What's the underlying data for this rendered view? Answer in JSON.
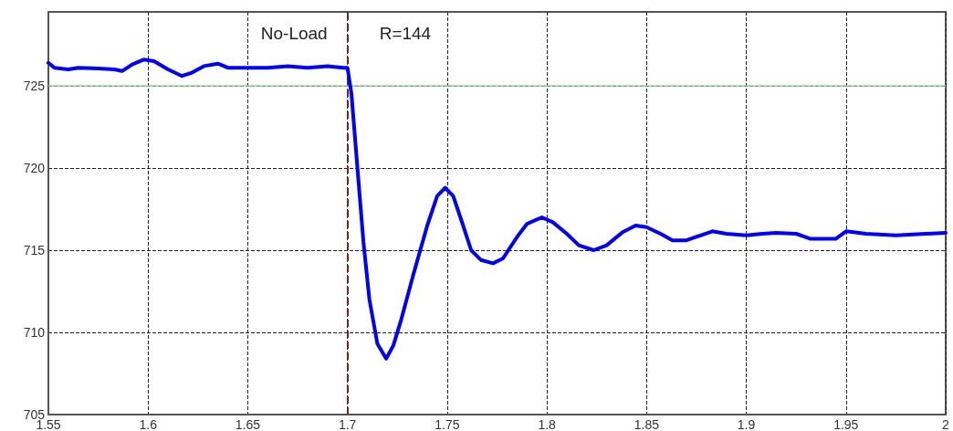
{
  "chart_data": {
    "type": "line",
    "x": [
      1.55,
      1.553,
      1.56,
      1.565,
      1.575,
      1.583,
      1.587,
      1.592,
      1.598,
      1.603,
      1.61,
      1.617,
      1.622,
      1.628,
      1.635,
      1.64,
      1.65,
      1.66,
      1.67,
      1.68,
      1.69,
      1.698,
      1.7,
      1.702,
      1.705,
      1.708,
      1.711,
      1.715,
      1.7194,
      1.723,
      1.727,
      1.733,
      1.74,
      1.745,
      1.749,
      1.753,
      1.758,
      1.762,
      1.767,
      1.773,
      1.778,
      1.785,
      1.79,
      1.7975,
      1.803,
      1.81,
      1.816,
      1.8235,
      1.83,
      1.838,
      1.8445,
      1.85,
      1.857,
      1.863,
      1.87,
      1.877,
      1.883,
      1.89,
      1.9,
      1.908,
      1.915,
      1.925,
      1.932,
      1.94,
      1.945,
      1.95,
      1.96,
      1.975,
      1.99,
      2.0
    ],
    "series": [
      {
        "color": "#0000ff",
        "values": [
          726.4,
          726.1,
          726.0,
          726.1,
          726.05,
          726.0,
          725.9,
          726.3,
          726.6,
          726.5,
          726.0,
          725.6,
          725.8,
          726.2,
          726.35,
          726.1,
          726.1,
          726.1,
          726.2,
          726.1,
          726.2,
          726.1,
          726.1,
          724.5,
          720,
          715.5,
          712,
          709.3,
          708.4,
          709.2,
          710.8,
          713.5,
          716.5,
          718.3,
          718.8,
          718.3,
          716.5,
          715.0,
          714.4,
          714.2,
          714.5,
          715.8,
          716.6,
          717.0,
          716.7,
          716.0,
          715.3,
          715.0,
          715.3,
          716.1,
          716.5,
          716.4,
          716.0,
          715.6,
          715.6,
          715.9,
          716.15,
          716.0,
          715.9,
          716.0,
          716.05,
          716.0,
          715.7,
          715.7,
          715.7,
          716.15,
          716.0,
          715.9,
          716.0,
          716.05
        ]
      }
    ],
    "xlim": [
      1.55,
      2
    ],
    "xticks": [
      1.55,
      1.6,
      1.65,
      1.7,
      1.75,
      1.8,
      1.85,
      1.9,
      1.95,
      2
    ],
    "ylim": [
      705,
      729.5
    ],
    "yticks": [
      705,
      710,
      715,
      720,
      725
    ],
    "grid": true,
    "marker": "none",
    "line_style": "solid",
    "ref_lines": [
      {
        "axis": "x",
        "value": 1.7,
        "color": "#6b2a1a",
        "line_style": "dashed"
      },
      {
        "axis": "y",
        "value": 725,
        "color": "#99d699",
        "line_style": "solid"
      }
    ],
    "annotations": [
      "No-Load",
      "R=144"
    ]
  }
}
